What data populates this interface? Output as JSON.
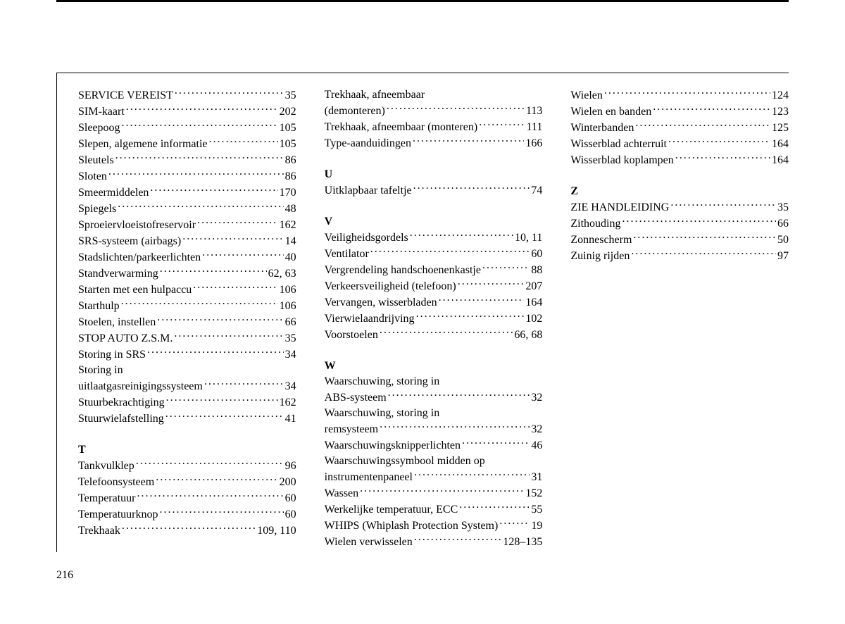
{
  "pageNumber": "216",
  "columns": [
    [
      {
        "type": "entry",
        "term": "SERVICE VEREIST",
        "page": "35"
      },
      {
        "type": "entry",
        "term": "SIM-kaart",
        "page": "202"
      },
      {
        "type": "entry",
        "term": "Sleepoog",
        "page": "105"
      },
      {
        "type": "entry",
        "term": "Slepen, algemene informatie",
        "page": "105"
      },
      {
        "type": "entry",
        "term": "Sleutels",
        "page": "86"
      },
      {
        "type": "entry",
        "term": "Sloten",
        "page": "86"
      },
      {
        "type": "entry",
        "term": "Smeermiddelen",
        "page": "170"
      },
      {
        "type": "entry",
        "term": "Spiegels",
        "page": "48"
      },
      {
        "type": "entry",
        "term": "Sproeiervloeistofreservoir",
        "page": "162"
      },
      {
        "type": "entry",
        "term": "SRS-systeem (airbags)",
        "page": "14"
      },
      {
        "type": "entry",
        "term": "Stadslichten/parkeerlichten",
        "page": "40"
      },
      {
        "type": "entry",
        "term": "Standverwarming",
        "page": "62, 63"
      },
      {
        "type": "entry",
        "term": "Starten met een hulpaccu",
        "page": "106"
      },
      {
        "type": "entry",
        "term": "Starthulp",
        "page": "106"
      },
      {
        "type": "entry",
        "term": "Stoelen, instellen",
        "page": "66"
      },
      {
        "type": "entry",
        "term": "STOP AUTO Z.S.M.",
        "page": "35"
      },
      {
        "type": "entry",
        "term": "Storing in SRS",
        "page": "34"
      },
      {
        "type": "cont",
        "term": "Storing in"
      },
      {
        "type": "entry",
        "term": "uitlaatgasreinigingssysteem",
        "page": "34"
      },
      {
        "type": "entry",
        "term": "Stuurbekrachtiging",
        "page": "162"
      },
      {
        "type": "entry",
        "term": "Stuurwielafstelling",
        "page": "41"
      },
      {
        "type": "letter",
        "term": "T"
      },
      {
        "type": "entry",
        "term": "Tankvulklep",
        "page": "96"
      },
      {
        "type": "entry",
        "term": "Telefoonsysteem",
        "page": "200"
      },
      {
        "type": "entry",
        "term": "Temperatuur",
        "page": "60"
      },
      {
        "type": "entry",
        "term": "Temperatuurknop",
        "page": "60"
      },
      {
        "type": "entry",
        "term": "Trekhaak",
        "page": "109, 110"
      }
    ],
    [
      {
        "type": "cont",
        "term": "Trekhaak, afneembaar"
      },
      {
        "type": "entry",
        "term": "(demonteren)",
        "page": "113"
      },
      {
        "type": "entry",
        "term": "Trekhaak, afneembaar (monteren)",
        "page": "111"
      },
      {
        "type": "entry",
        "term": "Type-aanduidingen",
        "page": "166"
      },
      {
        "type": "letter",
        "term": "U"
      },
      {
        "type": "entry",
        "term": "Uitklapbaar tafeltje",
        "page": "74"
      },
      {
        "type": "letter",
        "term": "V"
      },
      {
        "type": "entry",
        "term": "Veiligheidsgordels",
        "page": "10, 11"
      },
      {
        "type": "entry",
        "term": "Ventilator",
        "page": "60"
      },
      {
        "type": "entry",
        "term": "Vergrendeling handschoenenkastje",
        "page": "88"
      },
      {
        "type": "entry",
        "term": "Verkeersveiligheid (telefoon)",
        "page": "207"
      },
      {
        "type": "entry",
        "term": "Vervangen, wisserbladen",
        "page": "164"
      },
      {
        "type": "entry",
        "term": "Vierwielaandrijving",
        "page": "102"
      },
      {
        "type": "entry",
        "term": "Voorstoelen",
        "page": "66, 68"
      },
      {
        "type": "letter",
        "term": "W"
      },
      {
        "type": "cont",
        "term": "Waarschuwing, storing in"
      },
      {
        "type": "entry",
        "term": "ABS-systeem",
        "page": "32"
      },
      {
        "type": "cont",
        "term": "Waarschuwing, storing in"
      },
      {
        "type": "entry",
        "term": "remsysteem",
        "page": "32"
      },
      {
        "type": "entry",
        "term": "Waarschuwingsknipperlichten",
        "page": "46"
      },
      {
        "type": "cont",
        "term": "Waarschuwingssymbool midden op"
      },
      {
        "type": "entry",
        "term": "instrumentenpaneel",
        "page": "31"
      },
      {
        "type": "entry",
        "term": "Wassen",
        "page": "152"
      },
      {
        "type": "entry",
        "term": "Werkelijke temperatuur, ECC",
        "page": "55"
      },
      {
        "type": "entry",
        "term": "WHIPS (Whiplash Protection System)",
        "page": "19"
      },
      {
        "type": "entry",
        "term": "Wielen verwisselen",
        "page": "128–135"
      }
    ],
    [
      {
        "type": "entry",
        "term": "Wielen",
        "page": "124"
      },
      {
        "type": "entry",
        "term": "Wielen en banden",
        "page": "123"
      },
      {
        "type": "entry",
        "term": "Winterbanden",
        "page": "125"
      },
      {
        "type": "entry",
        "term": "Wisserblad achterruit",
        "page": "164"
      },
      {
        "type": "entry",
        "term": "Wisserblad koplampen",
        "page": "164"
      },
      {
        "type": "letter",
        "term": "Z"
      },
      {
        "type": "entry",
        "term": "ZIE HANDLEIDING",
        "page": "35"
      },
      {
        "type": "entry",
        "term": "Zithouding",
        "page": "66"
      },
      {
        "type": "entry",
        "term": "Zonnescherm",
        "page": "50"
      },
      {
        "type": "entry",
        "term": "Zuinig rijden",
        "page": "97"
      }
    ]
  ]
}
